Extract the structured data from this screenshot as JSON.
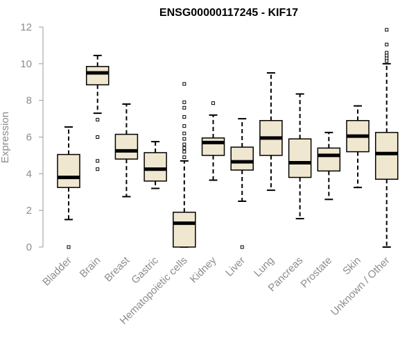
{
  "chart_data": {
    "type": "boxplot",
    "title": "ENSG00000117245 - KIF17",
    "xlabel": "",
    "ylabel": "Expression",
    "ylim": [
      0,
      12
    ],
    "yticks": [
      0,
      2,
      4,
      6,
      8,
      10,
      12
    ],
    "grid": false,
    "box_fill": "#efe7cf",
    "median_color": "#000000",
    "categories": [
      "Bladder",
      "Brain",
      "Breast",
      "Gastric",
      "Hematopoietic cells",
      "Kidney",
      "Liver",
      "Lung",
      "Pancreas",
      "Prostate",
      "Skin",
      "Unknown / Other"
    ],
    "boxes": [
      {
        "label": "Bladder",
        "min": 1.5,
        "q1": 3.25,
        "median": 3.8,
        "q3": 5.05,
        "max": 6.55,
        "outliers": [
          0.0
        ]
      },
      {
        "label": "Brain",
        "min": 7.3,
        "q1": 8.85,
        "median": 9.5,
        "q3": 9.85,
        "max": 10.45,
        "outliers": [
          4.25,
          4.7,
          6.0,
          6.95
        ]
      },
      {
        "label": "Breast",
        "min": 2.75,
        "q1": 4.8,
        "median": 5.25,
        "q3": 6.15,
        "max": 7.8,
        "outliers": []
      },
      {
        "label": "Gastric",
        "min": 3.2,
        "q1": 3.6,
        "median": 4.25,
        "q3": 5.15,
        "max": 5.75,
        "outliers": []
      },
      {
        "label": "Hematopoietic cells",
        "min": 0.0,
        "q1": 0.0,
        "median": 1.3,
        "q3": 1.9,
        "max": 4.7,
        "outliers": [
          4.9,
          5.2,
          5.4,
          5.6,
          5.9,
          6.2,
          6.6,
          7.1,
          7.6,
          7.9,
          8.9
        ]
      },
      {
        "label": "Kidney",
        "min": 3.65,
        "q1": 5.0,
        "median": 5.7,
        "q3": 5.95,
        "max": 7.2,
        "outliers": [
          7.85
        ]
      },
      {
        "label": "Liver",
        "min": 2.5,
        "q1": 4.2,
        "median": 4.65,
        "q3": 5.45,
        "max": 7.0,
        "outliers": [
          0.0
        ]
      },
      {
        "label": "Lung",
        "min": 3.1,
        "q1": 5.0,
        "median": 5.95,
        "q3": 6.9,
        "max": 9.5,
        "outliers": []
      },
      {
        "label": "Pancreas",
        "min": 1.55,
        "q1": 3.8,
        "median": 4.6,
        "q3": 5.9,
        "max": 8.35,
        "outliers": []
      },
      {
        "label": "Prostate",
        "min": 2.6,
        "q1": 4.15,
        "median": 5.0,
        "q3": 5.4,
        "max": 6.25,
        "outliers": []
      },
      {
        "label": "Skin",
        "min": 3.25,
        "q1": 5.2,
        "median": 6.05,
        "q3": 6.9,
        "max": 7.7,
        "outliers": []
      },
      {
        "label": "Unknown / Other",
        "min": 0.0,
        "q1": 3.7,
        "median": 5.1,
        "q3": 6.25,
        "max": 10.0,
        "outliers": [
          10.15,
          10.3,
          10.45,
          10.6,
          11.05,
          11.85
        ]
      }
    ]
  }
}
